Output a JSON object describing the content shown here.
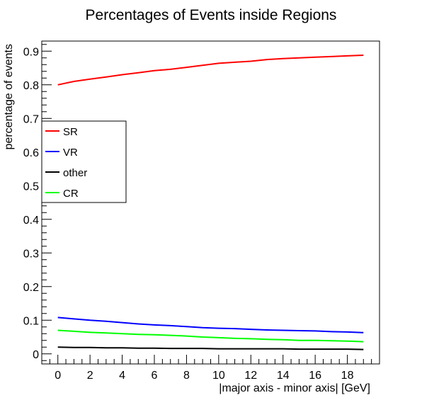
{
  "chart_data": {
    "type": "line",
    "title": "Percentages of Events inside Regions",
    "xlabel": "|major axis - minor axis| [GeV]",
    "ylabel": "percentage of events",
    "xlim": [
      -1,
      20
    ],
    "ylim": [
      -0.03,
      0.93
    ],
    "x_ticks": [
      "0",
      "2",
      "4",
      "6",
      "8",
      "10",
      "12",
      "14",
      "16",
      "18"
    ],
    "y_ticks": [
      "0",
      "0.1",
      "0.2",
      "0.3",
      "0.4",
      "0.5",
      "0.6",
      "0.7",
      "0.8",
      "0.9"
    ],
    "legend_position": "left",
    "x": [
      0,
      1,
      2,
      3,
      4,
      5,
      6,
      7,
      8,
      9,
      10,
      11,
      12,
      13,
      14,
      15,
      16,
      17,
      18,
      19
    ],
    "series": [
      {
        "name": "SR",
        "color": "#ff0000",
        "values": [
          0.8,
          0.81,
          0.817,
          0.823,
          0.83,
          0.836,
          0.842,
          0.846,
          0.852,
          0.858,
          0.864,
          0.867,
          0.87,
          0.875,
          0.878,
          0.88,
          0.882,
          0.884,
          0.886,
          0.888
        ]
      },
      {
        "name": "VR",
        "color": "#0000ff",
        "values": [
          0.108,
          0.104,
          0.1,
          0.097,
          0.093,
          0.089,
          0.086,
          0.084,
          0.081,
          0.078,
          0.076,
          0.075,
          0.073,
          0.071,
          0.07,
          0.069,
          0.068,
          0.066,
          0.065,
          0.063
        ]
      },
      {
        "name": "other",
        "color": "#000000",
        "values": [
          0.02,
          0.019,
          0.019,
          0.018,
          0.018,
          0.017,
          0.017,
          0.016,
          0.016,
          0.016,
          0.015,
          0.015,
          0.015,
          0.015,
          0.015,
          0.014,
          0.014,
          0.014,
          0.014,
          0.013
        ]
      },
      {
        "name": "CR",
        "color": "#00ff00",
        "values": [
          0.07,
          0.067,
          0.064,
          0.062,
          0.06,
          0.058,
          0.057,
          0.055,
          0.053,
          0.05,
          0.048,
          0.046,
          0.045,
          0.043,
          0.042,
          0.04,
          0.04,
          0.039,
          0.038,
          0.036
        ]
      }
    ]
  }
}
